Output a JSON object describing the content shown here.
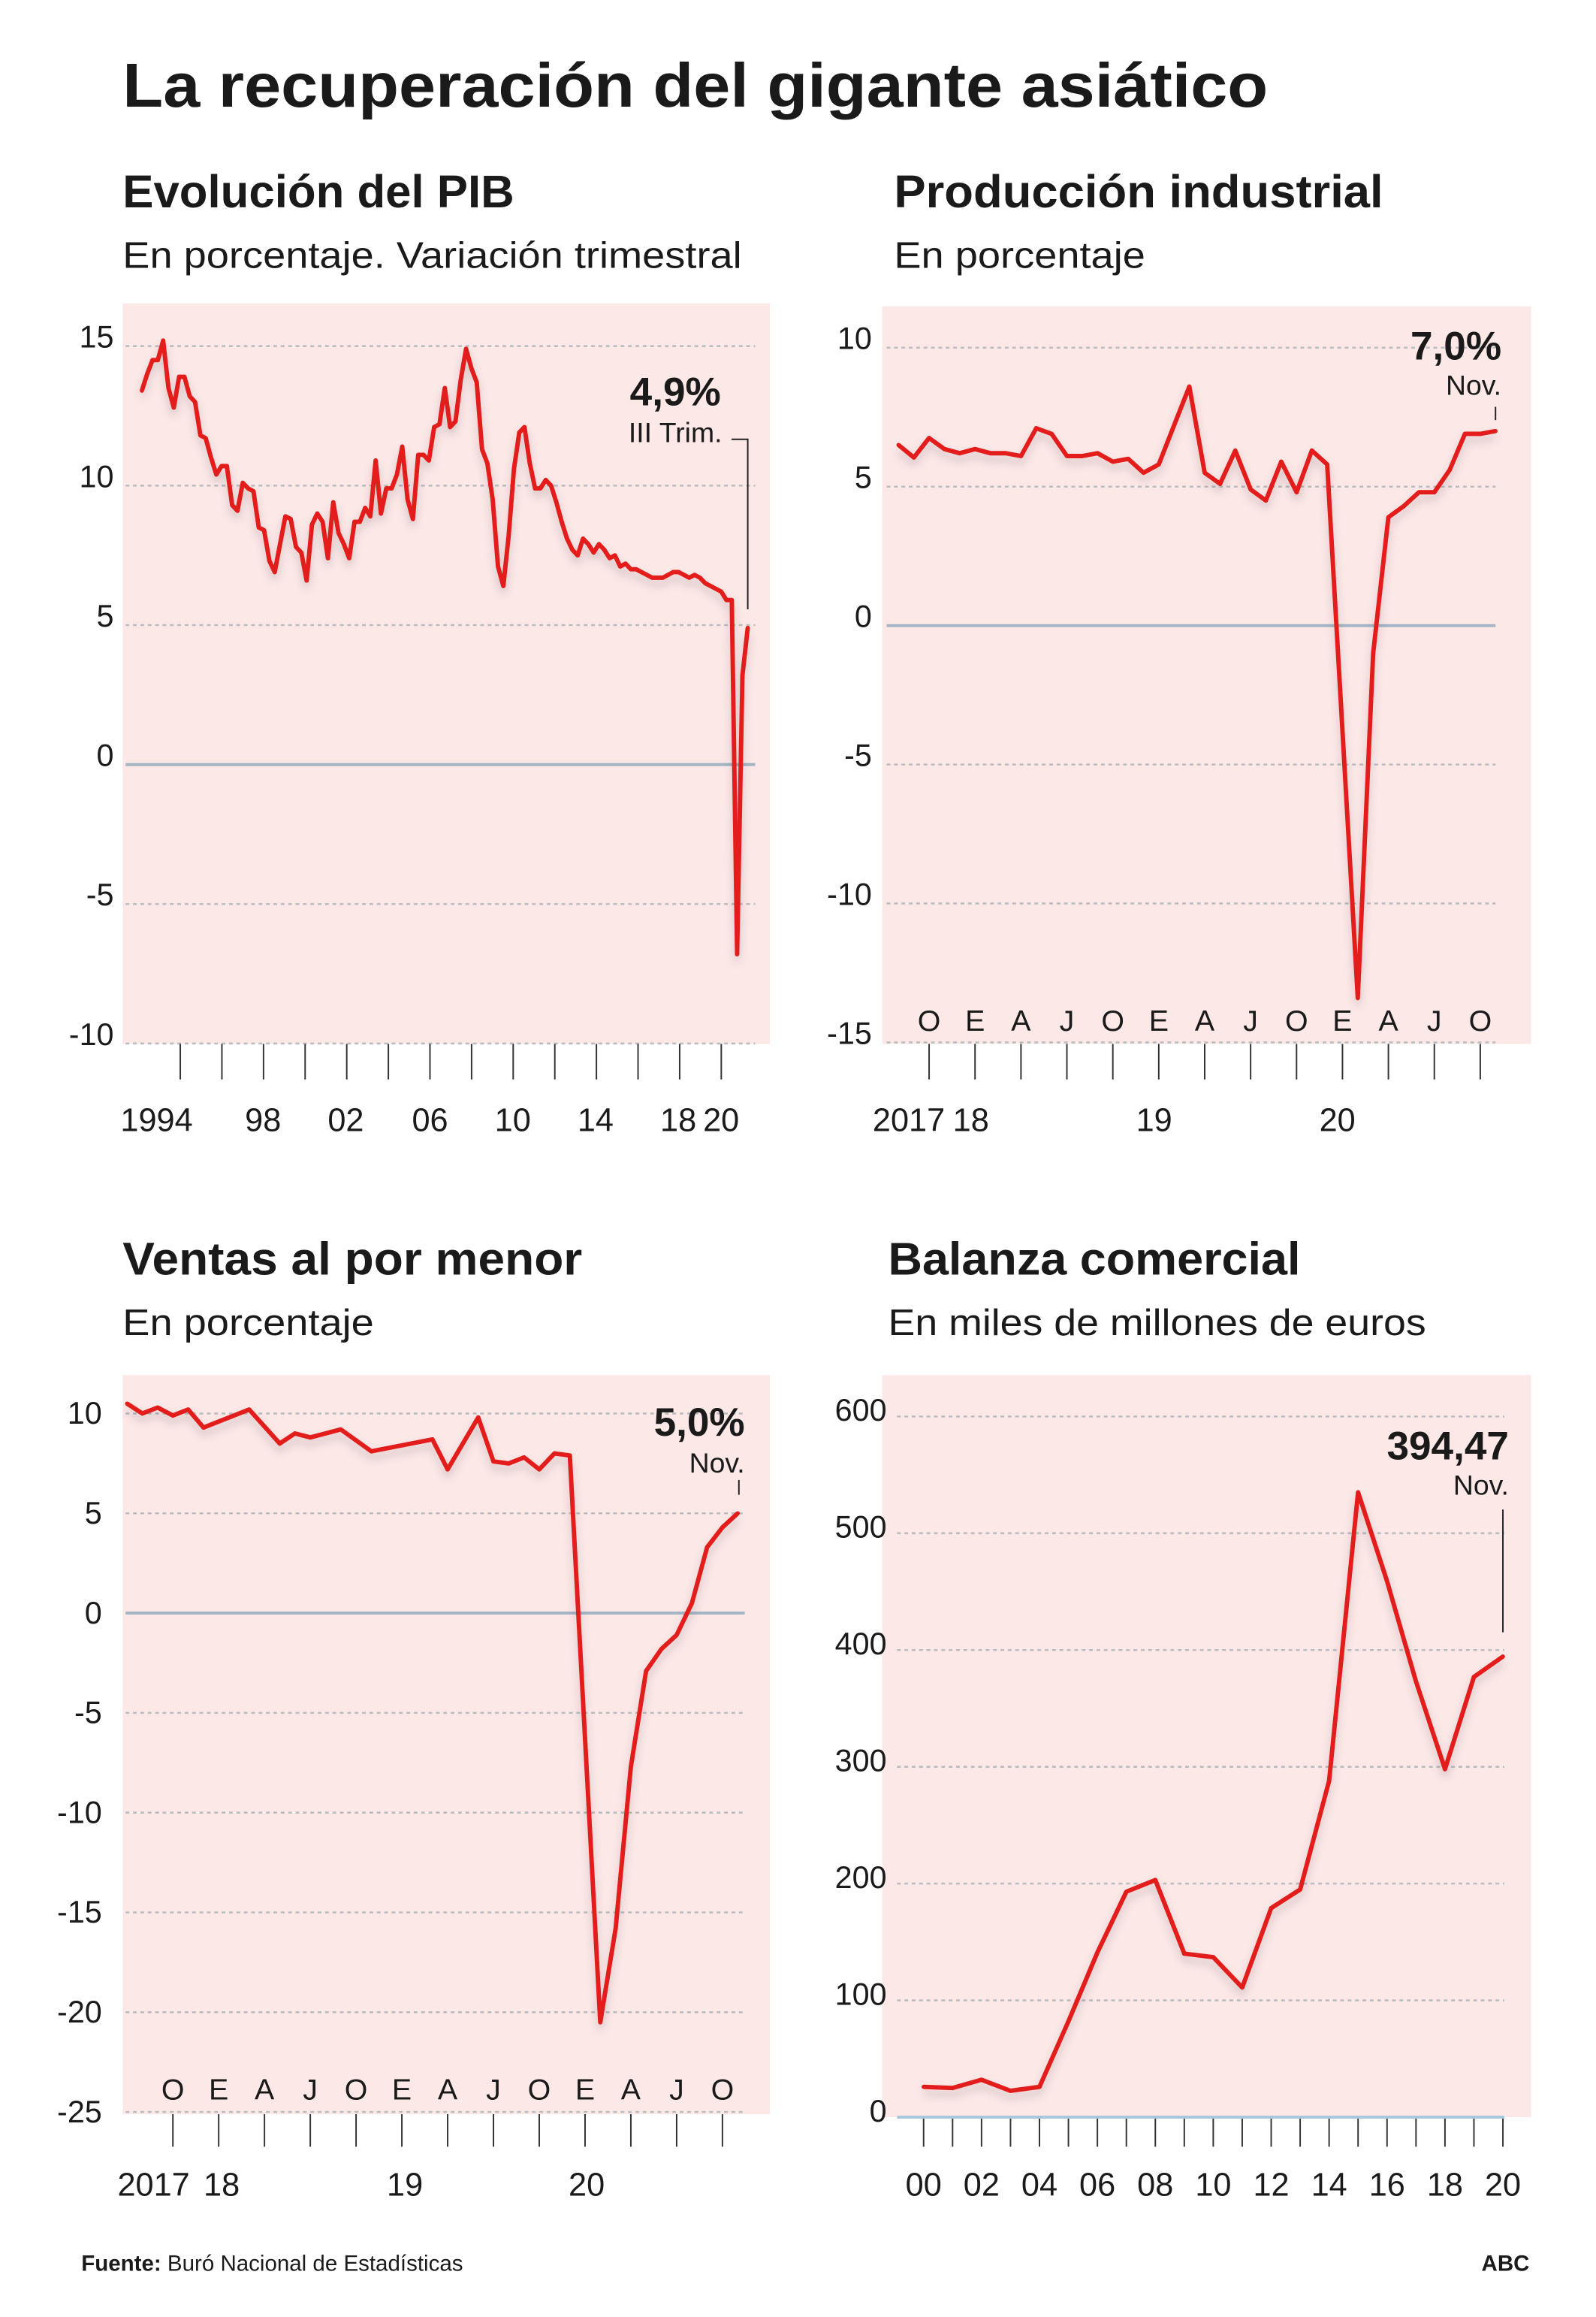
{
  "title": "La recuperación del gigante asiático",
  "footer": {
    "source_label": "Fuente:",
    "source": "Buró Nacional de Estadísticas",
    "brand": "ABC"
  },
  "colors": {
    "line": "#e31d1a",
    "panel_bg": "#fde8e8",
    "zero_line": "#a3b4c3",
    "gridline": "#b9bcc0"
  },
  "chart_data": [
    {
      "type": "line",
      "title": "Evolución del PIB",
      "subtitle": "En porcentaje. Variación trimestral",
      "ylim": [
        -10,
        15
      ],
      "y_ticks": [
        "15",
        "10",
        "5",
        "0",
        "-5",
        "-10"
      ],
      "x_tick_labels": [
        "1994",
        "98",
        "02",
        "06",
        "10",
        "14",
        "18",
        "20"
      ],
      "grid": true,
      "annotation": {
        "value": "4,9%",
        "label": "III Trim."
      },
      "values_by_year": {
        "1992": [
          13.4,
          14.0,
          14.5,
          14.5
        ],
        "1993": [
          15.2,
          13.5,
          12.8,
          13.9
        ],
        "1994": [
          13.9,
          13.2,
          13.0,
          11.8
        ],
        "1995": [
          11.7,
          11.0,
          10.4,
          10.7
        ],
        "1996": [
          10.7,
          9.3,
          9.1,
          10.1
        ],
        "1997": [
          9.9,
          9.8,
          8.5,
          8.4
        ],
        "1998": [
          7.3,
          6.9,
          7.9,
          8.9
        ],
        "1999": [
          8.8,
          7.8,
          7.6,
          6.6
        ],
        "2000": [
          8.6,
          9.0,
          8.7,
          7.4
        ],
        "2001": [
          9.4,
          8.3,
          7.9,
          7.4
        ],
        "2002": [
          8.7,
          8.7,
          9.2,
          8.9
        ],
        "2003": [
          10.9,
          9.0,
          9.9,
          9.9
        ],
        "2004": [
          10.4,
          11.4,
          9.5,
          8.8
        ],
        "2005": [
          11.1,
          11.1,
          10.9,
          12.1
        ],
        "2006": [
          12.2,
          13.5,
          12.1,
          12.3
        ],
        "2007": [
          13.8,
          14.9,
          14.2,
          13.7
        ],
        "2008": [
          11.3,
          10.8,
          9.5,
          7.1
        ],
        "2009": [
          6.4,
          8.2,
          10.6,
          11.9
        ],
        "2010": [
          12.1,
          10.8,
          9.9,
          9.9
        ],
        "2011": [
          10.2,
          10.0,
          9.4,
          8.7
        ],
        "2012": [
          8.1,
          7.7,
          7.5,
          8.1
        ],
        "2013": [
          7.9,
          7.6,
          7.9,
          7.7
        ],
        "2014": [
          7.4,
          7.5,
          7.1,
          7.2
        ],
        "2015": [
          7.0,
          7.0,
          6.9,
          6.8
        ],
        "2016": [
          6.7,
          6.7,
          6.7,
          6.8
        ],
        "2017": [
          6.9,
          6.9,
          6.8,
          6.7
        ],
        "2018": [
          6.8,
          6.7,
          6.5,
          6.4
        ],
        "2019": [
          6.3,
          6.2,
          5.9,
          5.9
        ],
        "2020": [
          -6.8,
          3.2,
          4.9
        ]
      }
    },
    {
      "type": "line",
      "title": "Producción industrial",
      "subtitle": "En porcentaje",
      "ylim": [
        -15,
        10
      ],
      "y_ticks": [
        "10",
        "5",
        "0",
        "-5",
        "-10",
        "-15"
      ],
      "month_labels": [
        "O",
        "E",
        "A",
        "J",
        "O",
        "E",
        "A",
        "J",
        "O",
        "E",
        "A",
        "J",
        "O"
      ],
      "year_labels": [
        "2017",
        "18",
        "19",
        "20"
      ],
      "grid": true,
      "annotation": {
        "value": "7,0%",
        "label": "Nov."
      },
      "dates": [
        "2017-08",
        "2017-09",
        "2017-10",
        "2017-11",
        "2017-12",
        "2018-01",
        "2018-02",
        "2018-03",
        "2018-04",
        "2018-05",
        "2018-06",
        "2018-07",
        "2018-08",
        "2018-09",
        "2018-10",
        "2018-11",
        "2018-12",
        "2019-01",
        "2019-03",
        "2019-04",
        "2019-05",
        "2019-06",
        "2019-07",
        "2019-08",
        "2019-09",
        "2019-10",
        "2019-11",
        "2019-12",
        "2020-02",
        "2020-03",
        "2020-04",
        "2020-05",
        "2020-06",
        "2020-07",
        "2020-08",
        "2020-09",
        "2020-10",
        "2020-11"
      ],
      "values": [
        6.5,
        6.05,
        6.75,
        6.35,
        6.2,
        6.35,
        6.2,
        6.2,
        6.1,
        7.1,
        6.9,
        6.1,
        6.1,
        6.2,
        5.9,
        6.0,
        5.5,
        5.8,
        8.6,
        5.5,
        5.1,
        6.3,
        4.9,
        4.5,
        5.9,
        4.8,
        6.3,
        5.8,
        -13.4,
        -1.0,
        3.9,
        4.3,
        4.8,
        4.8,
        5.6,
        6.9,
        6.9,
        7.0
      ]
    },
    {
      "type": "line",
      "title": "Ventas al por menor",
      "subtitle": "En porcentaje",
      "ylim": [
        -25,
        10
      ],
      "y_ticks": [
        "10",
        "5",
        "0",
        "-5",
        "-10",
        "-15",
        "-20",
        "-25"
      ],
      "month_labels": [
        "O",
        "E",
        "A",
        "J",
        "O",
        "E",
        "A",
        "J",
        "O",
        "E",
        "A",
        "J",
        "O"
      ],
      "year_labels": [
        "2017",
        "18",
        "19",
        "20"
      ],
      "grid": true,
      "annotation": {
        "value": "5,0%",
        "label": "Nov."
      },
      "dates": [
        "2017-07",
        "2017-08",
        "2017-09",
        "2017-10",
        "2017-11",
        "2017-12",
        "2018-03",
        "2018-05",
        "2018-06",
        "2018-07",
        "2018-09",
        "2018-11",
        "2019-03",
        "2019-04",
        "2019-06",
        "2019-07",
        "2019-08",
        "2019-09",
        "2019-10",
        "2019-11",
        "2019-12",
        "2020-02",
        "2020-03",
        "2020-04",
        "2020-05",
        "2020-06",
        "2020-07",
        "2020-08",
        "2020-09",
        "2020-10",
        "2020-11"
      ],
      "values": [
        10.5,
        10.0,
        10.3,
        9.9,
        10.2,
        9.3,
        10.2,
        8.5,
        9.0,
        8.8,
        9.2,
        8.1,
        8.7,
        7.2,
        9.8,
        7.6,
        7.5,
        7.8,
        7.2,
        8.0,
        7.9,
        -20.5,
        -15.8,
        -7.7,
        -2.9,
        -1.8,
        -1.1,
        0.5,
        3.3,
        4.3,
        5.0
      ]
    },
    {
      "type": "line",
      "title": "Balanza comercial",
      "subtitle": "En miles de millones de euros",
      "ylim": [
        0,
        600
      ],
      "y_ticks": [
        "600",
        "500",
        "400",
        "300",
        "200",
        "100",
        "0"
      ],
      "x_tick_labels": [
        "00",
        "02",
        "04",
        "06",
        "08",
        "10",
        "12",
        "14",
        "16",
        "18",
        "20"
      ],
      "grid": true,
      "annotation": {
        "value": "394,47",
        "label": "Nov."
      },
      "years": [
        2000,
        2001,
        2002,
        2003,
        2004,
        2005,
        2006,
        2007,
        2008,
        2009,
        2010,
        2011,
        2012,
        2013,
        2014,
        2015,
        2016,
        2017,
        2018,
        2019,
        2020
      ],
      "values": [
        26,
        25,
        32,
        22.5,
        26,
        82,
        141,
        193,
        203,
        140,
        137,
        111,
        179,
        195,
        288,
        535,
        459,
        373,
        298,
        377,
        394.47
      ]
    }
  ]
}
